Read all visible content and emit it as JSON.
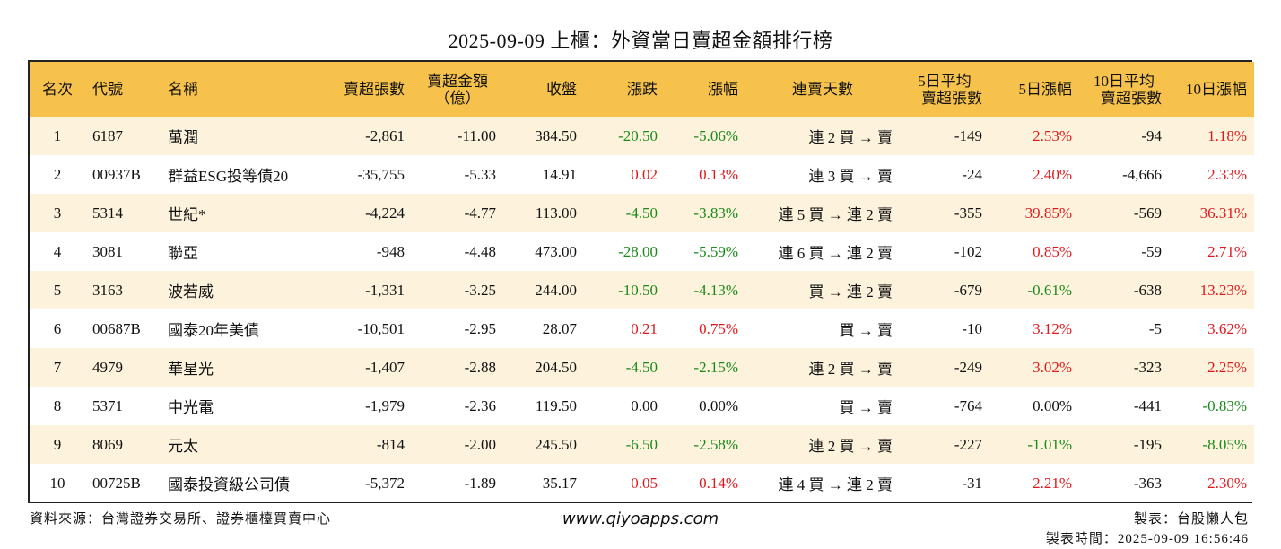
{
  "title": "2025-09-09 上櫃：外資當日賣超金額排行榜",
  "headers": {
    "rank": "名次",
    "code": "代號",
    "name": "名稱",
    "net_sell_lots": "賣超張數",
    "net_sell_amount_line1": "賣超金額",
    "net_sell_amount_line2": "（億）",
    "close": "收盤",
    "change": "漲跌",
    "change_pct": "漲幅",
    "streak": "連賣天數",
    "avg5_line1": "5日平均",
    "avg5_line2": "賣超張數",
    "pct5": "5日漲幅",
    "avg10_line1": "10日平均",
    "avg10_line2": "賣超張數",
    "pct10": "10日漲幅"
  },
  "rows": [
    {
      "rank": "1",
      "code": "6187",
      "name": "萬潤",
      "lots": "-2,861",
      "amount": "-11.00",
      "close": "384.50",
      "change": "-20.50",
      "change_pct": "-5.06%",
      "streak": "連 2 買 → 賣",
      "avg5": "-149",
      "pct5": "2.53%",
      "avg10": "-94",
      "pct10": "1.18%"
    },
    {
      "rank": "2",
      "code": "00937B",
      "name": "群益ESG投等債20",
      "lots": "-35,755",
      "amount": "-5.33",
      "close": "14.91",
      "change": "0.02",
      "change_pct": "0.13%",
      "streak": "連 3 買 → 賣",
      "avg5": "-24",
      "pct5": "2.40%",
      "avg10": "-4,666",
      "pct10": "2.33%"
    },
    {
      "rank": "3",
      "code": "5314",
      "name": "世紀*",
      "lots": "-4,224",
      "amount": "-4.77",
      "close": "113.00",
      "change": "-4.50",
      "change_pct": "-3.83%",
      "streak": "連 5 買 → 連 2 賣",
      "avg5": "-355",
      "pct5": "39.85%",
      "avg10": "-569",
      "pct10": "36.31%"
    },
    {
      "rank": "4",
      "code": "3081",
      "name": "聯亞",
      "lots": "-948",
      "amount": "-4.48",
      "close": "473.00",
      "change": "-28.00",
      "change_pct": "-5.59%",
      "streak": "連 6 買 → 連 2 賣",
      "avg5": "-102",
      "pct5": "0.85%",
      "avg10": "-59",
      "pct10": "2.71%"
    },
    {
      "rank": "5",
      "code": "3163",
      "name": "波若威",
      "lots": "-1,331",
      "amount": "-3.25",
      "close": "244.00",
      "change": "-10.50",
      "change_pct": "-4.13%",
      "streak": "買 → 連 2 賣",
      "avg5": "-679",
      "pct5": "-0.61%",
      "avg10": "-638",
      "pct10": "13.23%"
    },
    {
      "rank": "6",
      "code": "00687B",
      "name": "國泰20年美債",
      "lots": "-10,501",
      "amount": "-2.95",
      "close": "28.07",
      "change": "0.21",
      "change_pct": "0.75%",
      "streak": "買 → 賣",
      "avg5": "-10",
      "pct5": "3.12%",
      "avg10": "-5",
      "pct10": "3.62%"
    },
    {
      "rank": "7",
      "code": "4979",
      "name": "華星光",
      "lots": "-1,407",
      "amount": "-2.88",
      "close": "204.50",
      "change": "-4.50",
      "change_pct": "-2.15%",
      "streak": "連 2 買 → 賣",
      "avg5": "-249",
      "pct5": "3.02%",
      "avg10": "-323",
      "pct10": "2.25%"
    },
    {
      "rank": "8",
      "code": "5371",
      "name": "中光電",
      "lots": "-1,979",
      "amount": "-2.36",
      "close": "119.50",
      "change": "0.00",
      "change_pct": "0.00%",
      "streak": "買 → 賣",
      "avg5": "-764",
      "pct5": "0.00%",
      "avg10": "-441",
      "pct10": "-0.83%"
    },
    {
      "rank": "9",
      "code": "8069",
      "name": "元太",
      "lots": "-814",
      "amount": "-2.00",
      "close": "245.50",
      "change": "-6.50",
      "change_pct": "-2.58%",
      "streak": "連 2 買 → 賣",
      "avg5": "-227",
      "pct5": "-1.01%",
      "avg10": "-195",
      "pct10": "-8.05%"
    },
    {
      "rank": "10",
      "code": "00725B",
      "name": "國泰投資級公司債",
      "lots": "-5,372",
      "amount": "-1.89",
      "close": "35.17",
      "change": "0.05",
      "change_pct": "0.14%",
      "streak": "連 4 買 → 連 2 賣",
      "avg5": "-31",
      "pct5": "2.21%",
      "avg10": "-363",
      "pct10": "2.30%"
    }
  ],
  "footer": {
    "source": "資料來源：台灣證券交易所、證券櫃檯買賣中心",
    "website": "www.qiyoapps.com",
    "maker": "製表：台股懶人包",
    "made_time": "製表時間：2025-09-09 16:56:46"
  },
  "colors": {
    "header_bg": "#f6c24b",
    "row_alt_bg": "#fdf3dc",
    "up": "#e0181c",
    "down": "#1a8a1a"
  }
}
